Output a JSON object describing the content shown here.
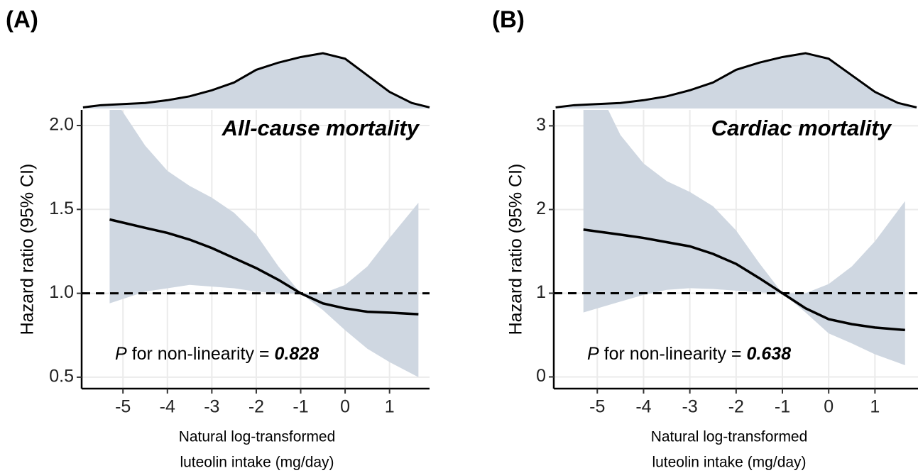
{
  "chart_data": [
    {
      "type": "line",
      "panel_label": "(A)",
      "title": "All-cause mortality",
      "xlabel": [
        "Natural log-transformed",
        "luteolin intake (mg/day)"
      ],
      "ylabel": "Hazard ratio (95% CI)",
      "annotation_p": "P",
      "annotation_text": "for non-linearity =",
      "annotation_value": "0.828",
      "x": [
        -5.3,
        -4.5,
        -4,
        -3.5,
        -3,
        -2.5,
        -2,
        -1.5,
        -1,
        -0.5,
        0,
        0.5,
        1,
        1.65
      ],
      "values": [
        1.44,
        1.39,
        1.36,
        1.32,
        1.27,
        1.21,
        1.15,
        1.08,
        1.0,
        0.94,
        0.91,
        0.89,
        0.885,
        0.875
      ],
      "ci_lower": [
        0.94,
        1.01,
        1.03,
        1.05,
        1.04,
        1.03,
        1.01,
        1.0,
        1.0,
        0.9,
        0.78,
        0.67,
        0.59,
        0.5
      ],
      "ci_upper": [
        2.2,
        1.88,
        1.73,
        1.64,
        1.57,
        1.48,
        1.35,
        1.16,
        1.0,
        1.0,
        1.05,
        1.16,
        1.33,
        1.54
      ],
      "density_x": [
        -5.9,
        -5.5,
        -5,
        -4.5,
        -4,
        -3.5,
        -3,
        -2.5,
        -2,
        -1.5,
        -1,
        -0.5,
        0,
        0.5,
        1,
        1.5,
        1.9
      ],
      "density": [
        0.02,
        0.06,
        0.08,
        0.1,
        0.15,
        0.22,
        0.33,
        0.47,
        0.7,
        0.83,
        0.93,
        1.0,
        0.9,
        0.6,
        0.3,
        0.1,
        0.02
      ],
      "reference_line": 1,
      "xlim": [
        -5.93,
        1.9
      ],
      "xticks": [
        -5,
        -4,
        -3,
        -2,
        -1,
        0,
        1
      ],
      "ylim": [
        0.432,
        2.093
      ],
      "yticks": [
        {
          "value": 0.5,
          "label": "0.5"
        },
        {
          "value": 1,
          "label": "1.0"
        },
        1.5,
        {
          "value": 2,
          "label": "2.0"
        }
      ],
      "grid": true,
      "line_color": "#000000",
      "band_color": "#cfd7e1"
    },
    {
      "type": "line",
      "panel_label": "(B)",
      "title": "Cardiac mortality",
      "xlabel": [
        "Natural log-transformed",
        "luteolin intake (mg/day)"
      ],
      "ylabel": "Hazard ratio (95% CI)",
      "annotation_p": "P",
      "annotation_text": "for non-linearity =",
      "annotation_value": "0.638",
      "x": [
        -5.3,
        -4.5,
        -4,
        -3.5,
        -3,
        -2.5,
        -2,
        -1.5,
        -1,
        -0.5,
        0,
        0.5,
        1,
        1.65
      ],
      "values": [
        1.76,
        1.7,
        1.66,
        1.61,
        1.56,
        1.47,
        1.35,
        1.18,
        1.0,
        0.82,
        0.69,
        0.63,
        0.59,
        0.56
      ],
      "ci_lower": [
        0.77,
        0.9,
        0.98,
        1.04,
        1.06,
        1.05,
        1.03,
        1.01,
        1.0,
        0.77,
        0.52,
        0.4,
        0.27,
        0.14
      ],
      "ci_upper": [
        3.8,
        2.89,
        2.55,
        2.34,
        2.21,
        2.04,
        1.75,
        1.36,
        1.0,
        1.0,
        1.11,
        1.32,
        1.62,
        2.1
      ],
      "density_x": [
        -5.9,
        -5.5,
        -5,
        -4.5,
        -4,
        -3.5,
        -3,
        -2.5,
        -2,
        -1.5,
        -1,
        -0.5,
        0,
        0.5,
        1,
        1.5,
        1.9
      ],
      "density": [
        0.02,
        0.06,
        0.08,
        0.1,
        0.15,
        0.22,
        0.33,
        0.47,
        0.7,
        0.83,
        0.93,
        1.0,
        0.9,
        0.6,
        0.3,
        0.1,
        0.02
      ],
      "reference_line": 1,
      "xlim": [
        -5.94,
        1.93
      ],
      "xticks": [
        -5,
        -4,
        -3,
        -2,
        -1,
        0,
        1
      ],
      "ylim": [
        -0.14,
        3.19
      ],
      "yticks": [
        0,
        1,
        2,
        3
      ],
      "grid": true,
      "line_color": "#000000",
      "band_color": "#cfd7e1"
    }
  ]
}
